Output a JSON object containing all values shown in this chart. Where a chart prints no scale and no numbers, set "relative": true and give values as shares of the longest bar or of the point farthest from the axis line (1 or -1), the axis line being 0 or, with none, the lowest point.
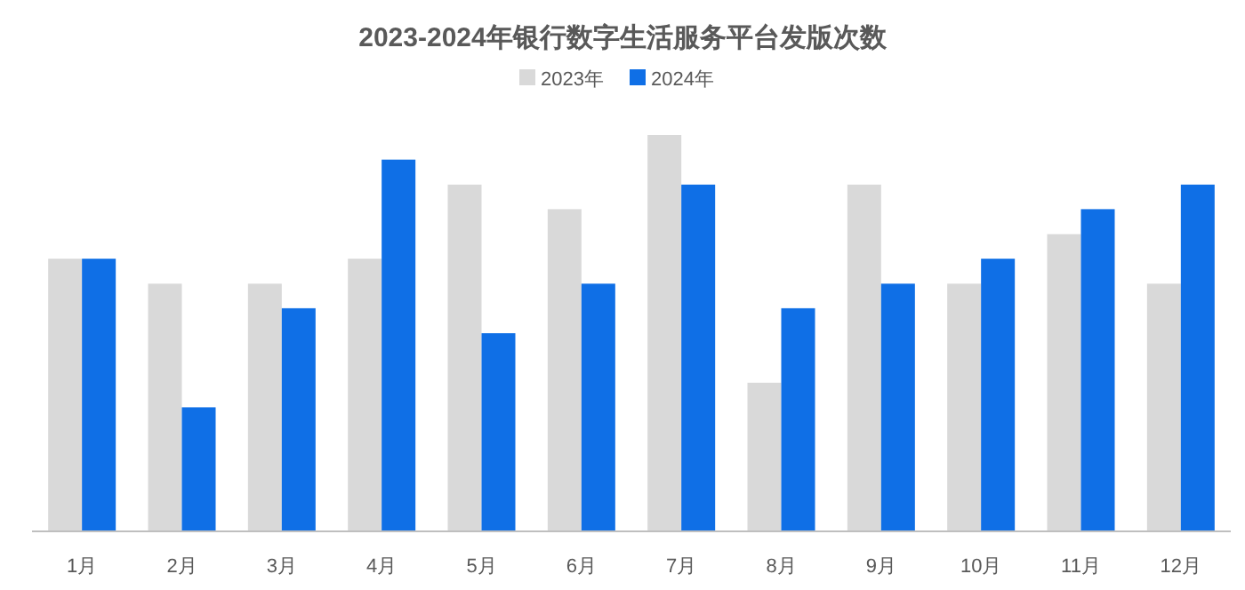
{
  "chart_data": {
    "type": "bar",
    "title": "2023-2024年银行数字生活服务平台发版次数",
    "relative": true,
    "legend": "top",
    "categories": [
      "1月",
      "2月",
      "3月",
      "4月",
      "5月",
      "6月",
      "7月",
      "8月",
      "9月",
      "10月",
      "11月",
      "12月"
    ],
    "series": [
      {
        "name": "2023年",
        "color": "#d9d9d9",
        "values": [
          0.688,
          0.625,
          0.625,
          0.688,
          0.875,
          0.813,
          1,
          0.375,
          0.875,
          0.625,
          0.75,
          0.625
        ]
      },
      {
        "name": "2024年",
        "color": "#0f6fe6",
        "values": [
          0.688,
          0.313,
          0.563,
          0.938,
          0.5,
          0.625,
          0.875,
          0.563,
          0.625,
          0.688,
          0.813,
          0.875
        ]
      }
    ]
  }
}
